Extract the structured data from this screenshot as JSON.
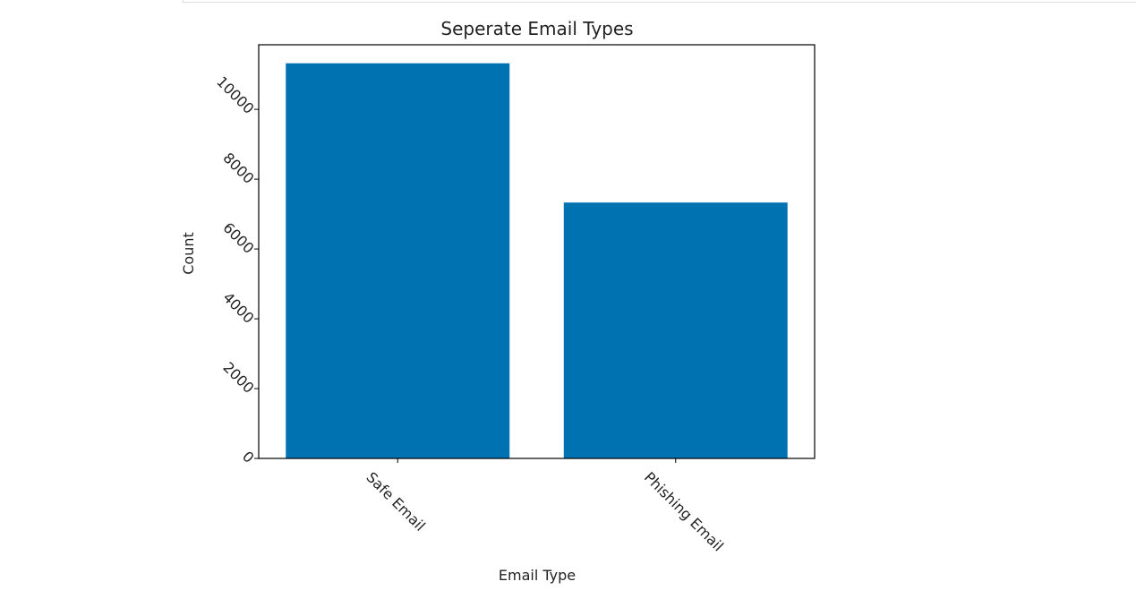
{
  "chart_data": {
    "type": "bar",
    "title": "Seperate Email Types",
    "xlabel": "Email Type",
    "ylabel": "Count",
    "categories": [
      "Safe Email",
      "Phishing Email"
    ],
    "values": [
      11320,
      7330
    ],
    "ylim": [
      0,
      11850
    ],
    "yticks": [
      0,
      2000,
      4000,
      6000,
      8000,
      10000
    ],
    "ytick_labels": [
      "0",
      "2000",
      "4000",
      "6000",
      "8000",
      "10000"
    ],
    "bar_color": "#0072b2",
    "grid": false,
    "x_tick_rotation": "-45",
    "y_tick_rotation": "-45"
  }
}
